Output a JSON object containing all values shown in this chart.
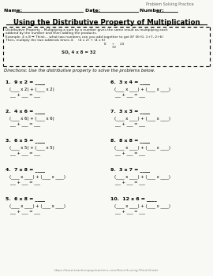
{
  "bg_color": "#f8f8f4",
  "title": "Using the Distributive Property of Multiplication",
  "header_top_right": "Problem Solving Practice",
  "name_label": "Name: ",
  "date_label": "Date: ",
  "number_label": "Number: ",
  "box_line1": "Distributive Property – Multiplying a sum by a number gives the same result as multiplying each addend by the number and then adding the products.",
  "box_line2": "Example: 4 x 8 ➡ Think... what two numbers can you add together to get 8? (8+0, 1+7, 2+6)",
  "box_line3": "Then, multiply the two addends times 4:        (4 x 2) + (4 x 6)",
  "box_line4": "                                                   8   +   24",
  "box_line5": "                                                      32",
  "box_line6": "SO, 4 x 8 = 32",
  "directions": "Directions: Use the distributive property to solve the problems below.",
  "problems_left": [
    {
      "num": "1.",
      "eq": "9 x 2 = ____",
      "line2": "(____ x 2) + (____ x 2)",
      "line3": "___ + ___ = ___"
    },
    {
      "num": "2.",
      "eq": "4 x 6 = ____",
      "line2": "(____ x 6) + (____ x 6)",
      "line3": "___ + ___ = ___"
    },
    {
      "num": "3.",
      "eq": "6 x 5 = ____",
      "line2": "(____ x 5) + (____ x 5)",
      "line3": "___ + ___ = ___"
    },
    {
      "num": "4.",
      "eq": "7 x 8 = ____",
      "line2": "(____ x ____) + (____ x ____)",
      "line3": "___ + ___ = ___"
    },
    {
      "num": "5.",
      "eq": "6 x 8 = ____",
      "line2": "(____ x ____) + (____ x ____)",
      "line3": "___ + ___ = ___"
    }
  ],
  "problems_right": [
    {
      "num": "6.",
      "eq": "3 x 4 = ____",
      "line2": "(____ x ____) + (____ x ____)",
      "line3": "___ + ___ = ___"
    },
    {
      "num": "7.",
      "eq": "3 x 3 = ____",
      "line2": "(____ x ____) + (____ x ____)",
      "line3": "___ + ___ = ___"
    },
    {
      "num": "8.",
      "eq": "8 x 8 = ____",
      "line2": "(____ x ____) + (____ x ____)",
      "line3": "___ + ___ = ___"
    },
    {
      "num": "9.",
      "eq": "3 x 7 = ____",
      "line2": "(____ x ____) + (____ x ____)",
      "line3": "___ + ___ = ___"
    },
    {
      "num": "10.",
      "eq": "12 x 6 = ____",
      "line2": "(____ x ____) + (____ x ____)",
      "line3": "___ + ___ = ___"
    }
  ],
  "footer_url": "https://www.teacherspayteachers.com/Store/Loving-Third-Grade"
}
